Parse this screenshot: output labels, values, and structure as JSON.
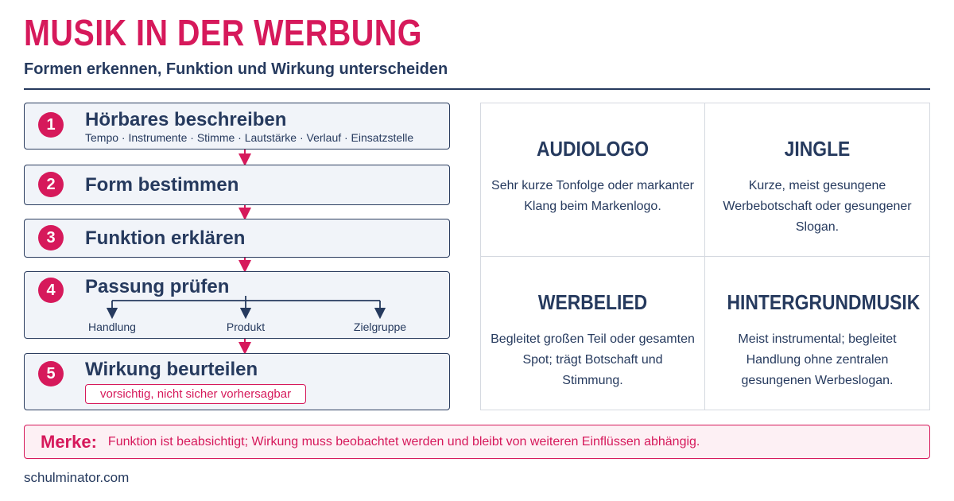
{
  "header": {
    "title": "MUSIK IN DER WERBUNG",
    "subtitle": "Formen erkennen, Funktion und Wirkung unterscheiden"
  },
  "steps": [
    {
      "number": "1",
      "title": "Hörbares beschreiben",
      "details": "Tempo · Instrumente · Stimme · Lautstärke · Verlauf · Einsatzstelle"
    },
    {
      "number": "2",
      "title": "Form bestimmen"
    },
    {
      "number": "3",
      "title": "Funktion erklären"
    },
    {
      "number": "4",
      "title": "Passung prüfen",
      "branches": [
        "Handlung",
        "Produkt",
        "Zielgruppe"
      ]
    },
    {
      "number": "5",
      "title": "Wirkung beurteilen",
      "note": "vorsichtig, nicht sicher vorhersagbar"
    }
  ],
  "forms": [
    {
      "name": "AUDIOLOGO",
      "description": "Sehr kurze Tonfolge oder markanter Klang beim Markenlogo."
    },
    {
      "name": "JINGLE",
      "description": "Kurze, meist gesungene Werbebotschaft oder gesungener Slogan."
    },
    {
      "name": "WERBELIED",
      "description": "Begleitet großen Teil oder gesamten Spot; trägt Botschaft und Stimmung."
    },
    {
      "name": "HINTERGRUNDMUSIK",
      "description": "Meist instrumental; begleitet Handlung ohne zentralen gesungenen Werbeslogan."
    }
  ],
  "note": {
    "label": "Merke:",
    "text": "Funktion ist beabsichtigt; Wirkung muss beobachtet werden und bleibt von weiteren Einflüssen abhängig."
  },
  "footer": "schulminator.com"
}
